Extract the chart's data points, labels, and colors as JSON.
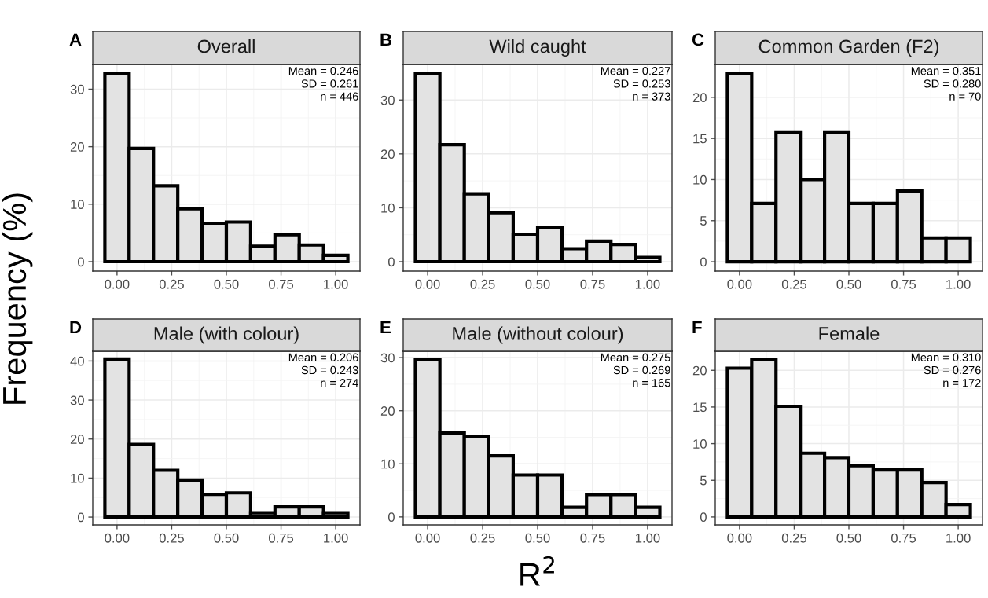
{
  "chart_data": [
    {
      "type": "histogram",
      "title": "Overall",
      "ylabel": "Frequency (%)",
      "annotations": [
        "A",
        "Mean = 0.246\nSD = 0.261\nn = 446"
      ],
      "bins": [
        -0.0556,
        0.0556,
        0.1667,
        0.2778,
        0.3889,
        0.5,
        0.6111,
        0.7222,
        0.8333,
        0.9444,
        1.0556
      ],
      "values": [
        32.7,
        19.7,
        13.2,
        9.2,
        6.7,
        6.9,
        2.7,
        4.7,
        2.9,
        1.1
      ],
      "color": "#e3e3e3",
      "xlim": [
        -0.111,
        1.111
      ],
      "xticks": [
        {
          "value": 0,
          "label": "0.00"
        },
        {
          "value": 0.25,
          "label": "0.25"
        },
        {
          "value": 0.5,
          "label": "0.50"
        },
        {
          "value": 0.75,
          "label": "0.75"
        },
        {
          "value": 1,
          "label": "1.00"
        }
      ],
      "ylim": [
        -1.64,
        34.3
      ],
      "yticks": [
        0,
        10,
        20,
        30
      ],
      "grid": true
    },
    {
      "type": "histogram",
      "title": "Wild caught",
      "annotations": [
        "B",
        "Mean = 0.227\nSD = 0.253\nn = 373"
      ],
      "bins": [
        -0.0556,
        0.0556,
        0.1667,
        0.2778,
        0.3889,
        0.5,
        0.6111,
        0.7222,
        0.8333,
        0.9444,
        1.0556
      ],
      "values": [
        34.9,
        21.7,
        12.6,
        9.1,
        5.1,
        6.4,
        2.4,
        3.8,
        3.2,
        0.8
      ],
      "color": "#e3e3e3",
      "xlim": [
        -0.111,
        1.111
      ],
      "xticks": [
        {
          "value": 0,
          "label": "0.00"
        },
        {
          "value": 0.25,
          "label": "0.25"
        },
        {
          "value": 0.5,
          "label": "0.50"
        },
        {
          "value": 0.75,
          "label": "0.75"
        },
        {
          "value": 1,
          "label": "1.00"
        }
      ],
      "ylim": [
        -1.75,
        36.6
      ],
      "yticks": [
        0,
        10,
        20,
        30
      ],
      "grid": true
    },
    {
      "type": "histogram",
      "title": "Common Garden (F2)",
      "annotations": [
        "C",
        "Mean = 0.351\nSD = 0.280\nn = 70"
      ],
      "bins": [
        -0.0556,
        0.0556,
        0.1667,
        0.2778,
        0.3889,
        0.5,
        0.6111,
        0.7222,
        0.8333,
        0.9444,
        1.0556
      ],
      "values": [
        22.9,
        7.1,
        15.7,
        10.0,
        15.7,
        7.1,
        7.1,
        8.6,
        2.9,
        2.9
      ],
      "color": "#e3e3e3",
      "xlim": [
        -0.111,
        1.111
      ],
      "xticks": [
        {
          "value": 0,
          "label": "0.00"
        },
        {
          "value": 0.25,
          "label": "0.25"
        },
        {
          "value": 0.5,
          "label": "0.50"
        },
        {
          "value": 0.75,
          "label": "0.75"
        },
        {
          "value": 1,
          "label": "1.00"
        }
      ],
      "ylim": [
        -1.14,
        24.0
      ],
      "yticks": [
        0,
        5,
        10,
        15,
        20
      ],
      "grid": true
    },
    {
      "type": "histogram",
      "title": "Male (with colour)",
      "annotations": [
        "D",
        "Mean = 0.206\nSD = 0.243\nn = 274"
      ],
      "bins": [
        -0.0556,
        0.0556,
        0.1667,
        0.2778,
        0.3889,
        0.5,
        0.6111,
        0.7222,
        0.8333,
        0.9444,
        1.0556
      ],
      "values": [
        40.5,
        18.6,
        12.0,
        9.5,
        5.8,
        6.2,
        1.1,
        2.6,
        2.6,
        1.1
      ],
      "color": "#e3e3e3",
      "xlim": [
        -0.111,
        1.111
      ],
      "xticks": [
        {
          "value": 0,
          "label": "0.00"
        },
        {
          "value": 0.25,
          "label": "0.25"
        },
        {
          "value": 0.5,
          "label": "0.50"
        },
        {
          "value": 0.75,
          "label": "0.75"
        },
        {
          "value": 1,
          "label": "1.00"
        }
      ],
      "ylim": [
        -2.0,
        42.5
      ],
      "yticks": [
        0,
        10,
        20,
        30,
        40
      ],
      "grid": true
    },
    {
      "type": "histogram",
      "title": "Male (without colour)",
      "xlabel": "R$^{2}$",
      "annotations": [
        "E",
        "Mean = 0.275\nSD = 0.269\nn = 165"
      ],
      "bins": [
        -0.0556,
        0.0556,
        0.1667,
        0.2778,
        0.3889,
        0.5,
        0.6111,
        0.7222,
        0.8333,
        0.9444,
        1.0556
      ],
      "values": [
        29.7,
        15.8,
        15.2,
        11.5,
        7.9,
        7.9,
        1.8,
        4.2,
        4.2,
        1.8
      ],
      "color": "#e3e3e3",
      "xlim": [
        -0.111,
        1.111
      ],
      "xticks": [
        {
          "value": 0,
          "label": "0.00"
        },
        {
          "value": 0.25,
          "label": "0.25"
        },
        {
          "value": 0.5,
          "label": "0.50"
        },
        {
          "value": 0.75,
          "label": "0.75"
        },
        {
          "value": 1,
          "label": "1.00"
        }
      ],
      "ylim": [
        -1.5,
        31.2
      ],
      "yticks": [
        0,
        10,
        20,
        30
      ],
      "grid": true
    },
    {
      "type": "histogram",
      "title": "Female",
      "annotations": [
        "F",
        "Mean = 0.310\nSD = 0.276\nn = 172"
      ],
      "bins": [
        -0.0556,
        0.0556,
        0.1667,
        0.2778,
        0.3889,
        0.5,
        0.6111,
        0.7222,
        0.8333,
        0.9444,
        1.0556
      ],
      "values": [
        20.3,
        21.5,
        15.1,
        8.7,
        8.1,
        7.0,
        6.4,
        6.4,
        4.7,
        1.7
      ],
      "color": "#e3e3e3",
      "xlim": [
        -0.111,
        1.111
      ],
      "xticks": [
        {
          "value": 0,
          "label": "0.00"
        },
        {
          "value": 0.25,
          "label": "0.25"
        },
        {
          "value": 0.5,
          "label": "0.50"
        },
        {
          "value": 0.75,
          "label": "0.75"
        },
        {
          "value": 1,
          "label": "1.00"
        }
      ],
      "ylim": [
        -1.08,
        22.6
      ],
      "yticks": [
        0,
        5,
        10,
        15,
        20
      ],
      "grid": true
    }
  ]
}
